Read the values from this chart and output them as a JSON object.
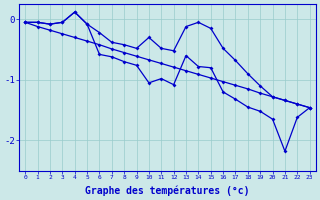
{
  "xlabel": "Graphe des températures (°c)",
  "x_ticks": [
    0,
    1,
    2,
    3,
    4,
    5,
    6,
    7,
    8,
    9,
    10,
    11,
    12,
    13,
    14,
    15,
    16,
    17,
    18,
    19,
    20,
    21,
    22,
    23
  ],
  "xlim": [
    -0.5,
    23.5
  ],
  "ylim": [
    -2.5,
    0.25
  ],
  "yticks": [
    0,
    -1,
    -2
  ],
  "background_color": "#cce8e8",
  "line_color": "#0000cc",
  "grid_color": "#99cccc",
  "straight_line": [
    -0.05,
    -0.12,
    -0.18,
    -0.24,
    -0.3,
    -0.36,
    -0.42,
    -0.49,
    -0.55,
    -0.61,
    -0.67,
    -0.73,
    -0.79,
    -0.85,
    -0.91,
    -0.97,
    -1.03,
    -1.09,
    -1.15,
    -1.22,
    -1.28,
    -1.34,
    -1.4,
    -1.46
  ],
  "upper_line": [
    -0.05,
    -0.05,
    -0.08,
    -0.05,
    0.12,
    -0.08,
    -0.22,
    -0.38,
    -0.42,
    -0.48,
    -0.3,
    -0.48,
    -0.52,
    -0.12,
    -0.05,
    -0.15,
    -0.48,
    -0.68,
    -0.9,
    -1.1,
    -1.28,
    -1.34,
    -1.4,
    -1.46
  ],
  "lower_line": [
    -0.05,
    -0.05,
    -0.08,
    -0.05,
    0.12,
    -0.08,
    -0.58,
    -0.62,
    -0.7,
    -0.76,
    -1.05,
    -0.98,
    -1.08,
    -0.6,
    -0.78,
    -0.8,
    -1.2,
    -1.32,
    -1.45,
    -1.52,
    -1.65,
    -2.18,
    -1.62,
    -1.46
  ]
}
